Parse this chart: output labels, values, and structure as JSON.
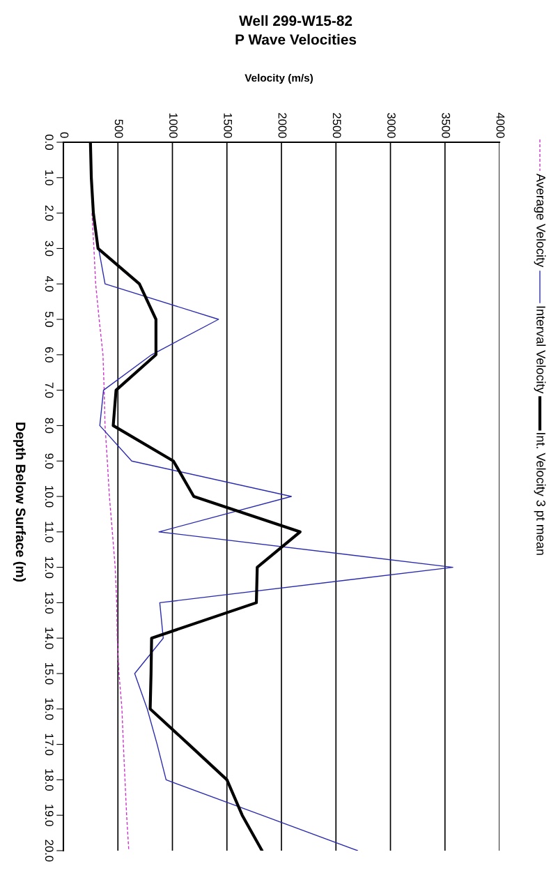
{
  "chart_data": {
    "type": "line",
    "orientation": "horizontal",
    "title": "Well 299-W15-82\nP Wave Velocities",
    "xlabel": "Velocity (m/s)",
    "ylabel": "Depth Below Surface (m)",
    "x": [
      0,
      1,
      2,
      3,
      4,
      5,
      6,
      7,
      8,
      9,
      10,
      11,
      12,
      13,
      14,
      15,
      16,
      17,
      18,
      19,
      20
    ],
    "series": [
      {
        "name": "Average Velocity",
        "color": "#cc33cc",
        "line_style": "dashed",
        "values": [
          null,
          null,
          262,
          280,
          296,
          328,
          363,
          374,
          382,
          403,
          422,
          449,
          475,
          489,
          494,
          510,
          537,
          550,
          565,
          580,
          600
        ]
      },
      {
        "name": "Interval Velocity",
        "color": "#2b2bb0",
        "line_style": "solid",
        "values": [
          null,
          null,
          275,
          323,
          382,
          1423,
          809,
          368,
          334,
          627,
          2091,
          876,
          3572,
          884,
          916,
          654,
          769,
          860,
          942,
          1820,
          2699
        ]
      },
      {
        "name": "Int. Velocity 3 pt mean",
        "color": "#000000",
        "line_style": "solid",
        "values": [
          248,
          256,
          275,
          318,
          697,
          849,
          849,
          483,
          457,
          1009,
          1196,
          2171,
          1778,
          1770,
          809,
          804,
          796,
          1150,
          1500,
          1640,
          1822
        ]
      }
    ],
    "xlim": [
      0,
      4000
    ],
    "xticks": [
      0,
      500,
      1000,
      1500,
      2000,
      2500,
      3000,
      3500,
      4000
    ],
    "ylim": [
      20,
      0
    ],
    "yticks": [
      {
        "value": 0,
        "label": "0.0"
      },
      {
        "value": 1,
        "label": "1.0"
      },
      {
        "value": 2,
        "label": "2.0"
      },
      {
        "value": 3,
        "label": "3.0"
      },
      {
        "value": 4,
        "label": "4.0"
      },
      {
        "value": 5,
        "label": "5.0"
      },
      {
        "value": 6,
        "label": "6.0"
      },
      {
        "value": 7,
        "label": "7.0"
      },
      {
        "value": 8,
        "label": "8.0"
      },
      {
        "value": 9,
        "label": "9.0"
      },
      {
        "value": 10,
        "label": "10.0"
      },
      {
        "value": 11,
        "label": "11.0"
      },
      {
        "value": 12,
        "label": "12.0"
      },
      {
        "value": 13,
        "label": "13.0"
      },
      {
        "value": 14,
        "label": "14.0"
      },
      {
        "value": 15,
        "label": "15.0"
      },
      {
        "value": 16,
        "label": "16.0"
      },
      {
        "value": 17,
        "label": "17.0"
      },
      {
        "value": 18,
        "label": "18.0"
      },
      {
        "value": 19,
        "label": "19.0"
      },
      {
        "value": 20,
        "label": "20.0"
      }
    ],
    "grid": "x",
    "legend": "right",
    "marker": "none"
  }
}
